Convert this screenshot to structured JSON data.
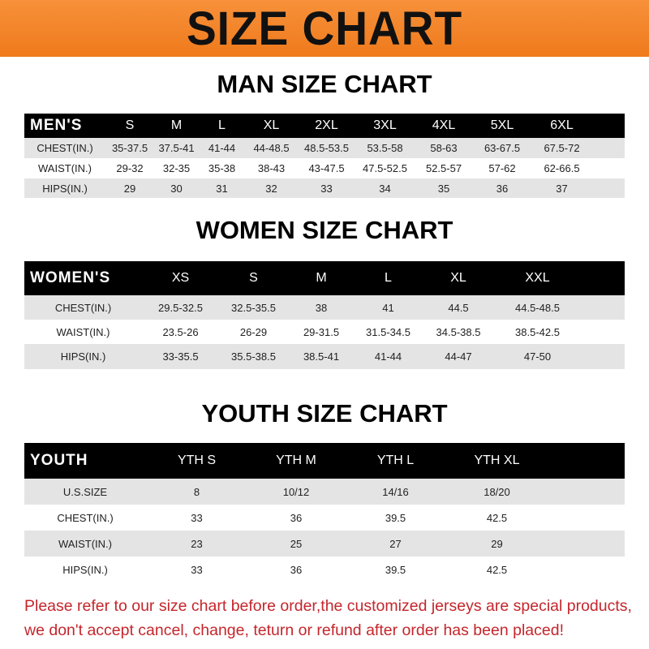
{
  "banner": "SIZE CHART",
  "men": {
    "title": "MAN SIZE CHART",
    "header": [
      "MEN'S",
      "S",
      "M",
      "L",
      "XL",
      "2XL",
      "3XL",
      "4XL",
      "5XL",
      "6XL"
    ],
    "rows": [
      [
        "CHEST(IN.)",
        "35-37.5",
        "37.5-41",
        "41-44",
        "44-48.5",
        "48.5-53.5",
        "53.5-58",
        "58-63",
        "63-67.5",
        "67.5-72"
      ],
      [
        "WAIST(IN.)",
        "29-32",
        "32-35",
        "35-38",
        "38-43",
        "43-47.5",
        "47.5-52.5",
        "52.5-57",
        "57-62",
        "62-66.5"
      ],
      [
        "HIPS(IN.)",
        "29",
        "30",
        "31",
        "32",
        "33",
        "34",
        "35",
        "36",
        "37"
      ]
    ]
  },
  "women": {
    "title": "WOMEN SIZE CHART",
    "header": [
      "WOMEN'S",
      "XS",
      "S",
      "M",
      "L",
      "XL",
      "XXL"
    ],
    "rows": [
      [
        "CHEST(IN.)",
        "29.5-32.5",
        "32.5-35.5",
        "38",
        "41",
        "44.5",
        "44.5-48.5"
      ],
      [
        "WAIST(IN.)",
        "23.5-26",
        "26-29",
        "29-31.5",
        "31.5-34.5",
        "34.5-38.5",
        "38.5-42.5"
      ],
      [
        "HIPS(IN.)",
        "33-35.5",
        "35.5-38.5",
        "38.5-41",
        "41-44",
        "44-47",
        "47-50"
      ]
    ]
  },
  "youth": {
    "title": "YOUTH SIZE CHART",
    "header": [
      "YOUTH",
      "YTH S",
      "YTH M",
      "YTH L",
      "YTH XL"
    ],
    "rows": [
      [
        "U.S.SIZE",
        "8",
        "10/12",
        "14/16",
        "18/20"
      ],
      [
        "CHEST(IN.)",
        "33",
        "36",
        "39.5",
        "42.5"
      ],
      [
        "WAIST(IN.)",
        "23",
        "25",
        "27",
        "29"
      ],
      [
        "HIPS(IN.)",
        "33",
        "36",
        "39.5",
        "42.5"
      ]
    ]
  },
  "notice": {
    "line1": "Please refer to our size chart before order,the customized jerseys are special products,",
    "line2": "we don't accept cancel, change, teturn or refund after order has been placed!"
  },
  "colors": {
    "banner": "#f08020",
    "header_row": "#000000",
    "shaded_row": "#e4e4e4",
    "notice": "#c4262c"
  }
}
